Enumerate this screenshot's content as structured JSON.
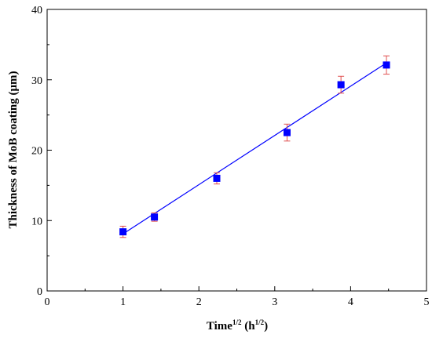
{
  "chart_data": {
    "type": "scatter",
    "title": "",
    "xlabel": {
      "main": "Time",
      "main_sup": "1/2",
      "unit_open": " (h",
      "unit_sup": "1/2",
      "unit_close": ")"
    },
    "ylabel": "Thickness of MoB coating (μm)",
    "xlim": [
      0,
      5
    ],
    "ylim": [
      0,
      40
    ],
    "xticks": [
      "0",
      "1",
      "2",
      "3",
      "4",
      "5"
    ],
    "yticks": [
      "0",
      "10",
      "20",
      "30",
      "40"
    ],
    "grid": false,
    "legend": "none",
    "series": [
      {
        "marker": "square",
        "x": [
          1.0,
          1.414,
          2.236,
          3.162,
          3.873,
          4.472
        ],
        "y": [
          8.4,
          10.5,
          16.0,
          22.5,
          29.3,
          32.1
        ],
        "yerr": [
          0.8,
          0.6,
          0.8,
          1.2,
          1.2,
          1.3
        ]
      }
    ],
    "fit_line": {
      "x": [
        1.0,
        4.472
      ],
      "y": [
        8.1,
        32.4
      ]
    },
    "colors": {
      "marker": "#0000ff",
      "fit_line": "#0000ff",
      "error_bars": "#e05050",
      "axes": "#000000"
    }
  }
}
